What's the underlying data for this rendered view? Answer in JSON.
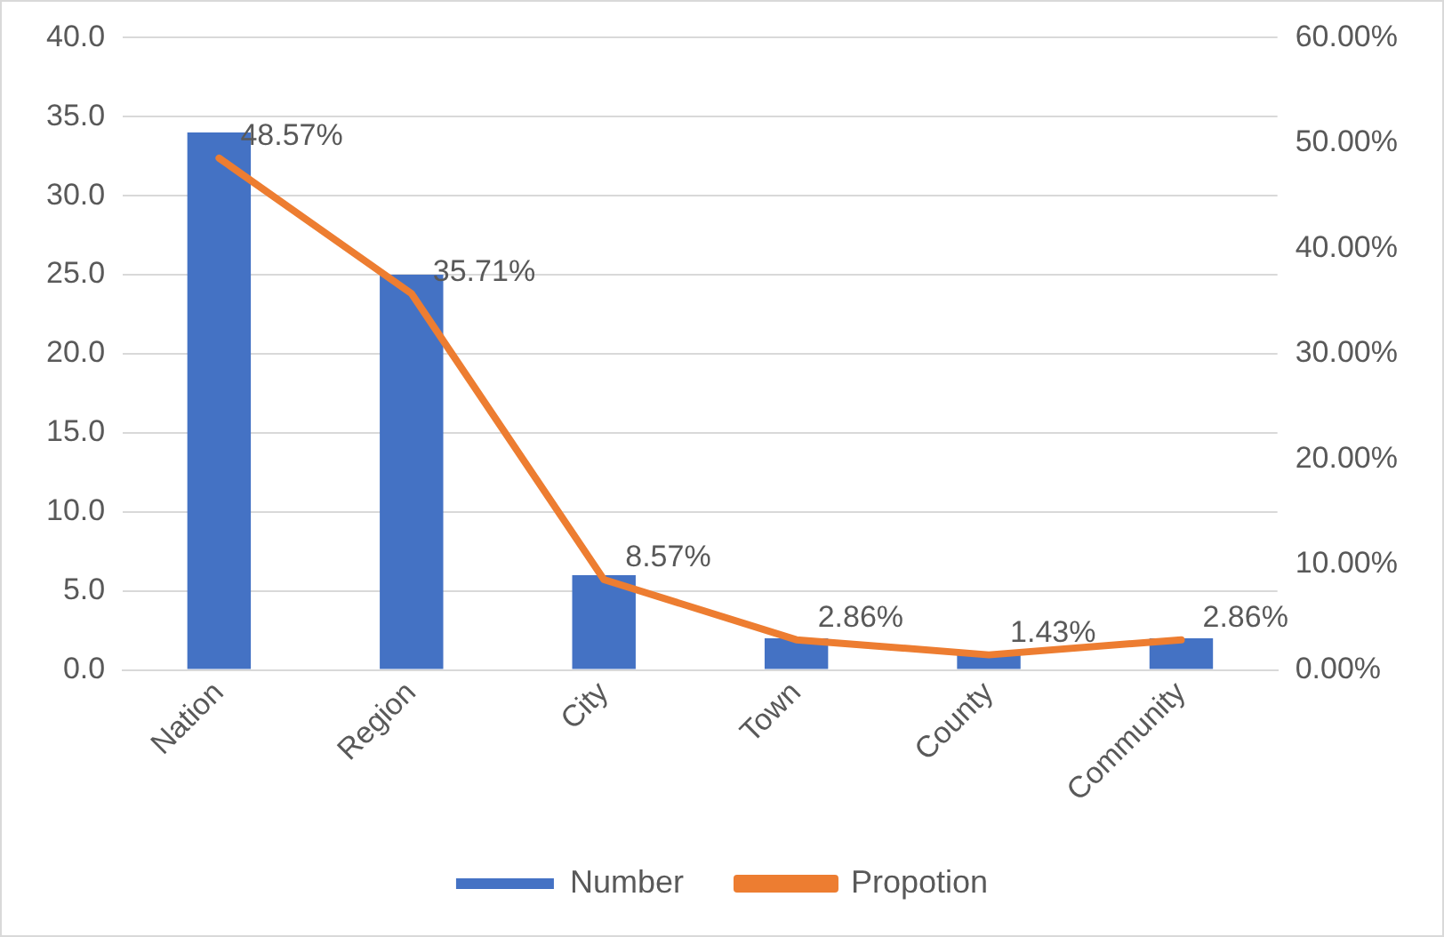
{
  "chart_data": {
    "type": "bar",
    "categories": [
      "Nation",
      "Region",
      "City",
      "Town",
      "County",
      "Community"
    ],
    "series": [
      {
        "name": "Number",
        "color": "#4472c4",
        "values": [
          34,
          25,
          6,
          2,
          1,
          2
        ]
      },
      {
        "name": "Propotion",
        "type": "line",
        "axis": "y2",
        "color": "#ed7d31",
        "values": [
          48.57,
          35.71,
          8.57,
          2.86,
          1.43,
          2.86
        ],
        "value_labels": [
          "48.57%",
          "35.71%",
          "8.57%",
          "2.86%",
          "1.43%",
          "2.86%"
        ]
      }
    ],
    "ylim": [
      0,
      40
    ],
    "yticks": [
      {
        "value": 0,
        "label": "0.0"
      },
      {
        "value": 5,
        "label": "5.0"
      },
      {
        "value": 10,
        "label": "10.0"
      },
      {
        "value": 15,
        "label": "15.0"
      },
      {
        "value": 20,
        "label": "20.0"
      },
      {
        "value": 25,
        "label": "25.0"
      },
      {
        "value": 30,
        "label": "30.0"
      },
      {
        "value": 35,
        "label": "35.0"
      },
      {
        "value": 40,
        "label": "40.0"
      }
    ],
    "y2lim": [
      0,
      60
    ],
    "y2ticks": [
      {
        "value": 0,
        "label": "0.00%"
      },
      {
        "value": 10,
        "label": "10.00%"
      },
      {
        "value": 20,
        "label": "20.00%"
      },
      {
        "value": 30,
        "label": "30.00%"
      },
      {
        "value": 40,
        "label": "40.00%"
      },
      {
        "value": 50,
        "label": "50.00%"
      },
      {
        "value": 60,
        "label": "60.00%"
      }
    ],
    "grid": "y",
    "legend": "bottom",
    "marker": "none",
    "line_style": "solid"
  }
}
